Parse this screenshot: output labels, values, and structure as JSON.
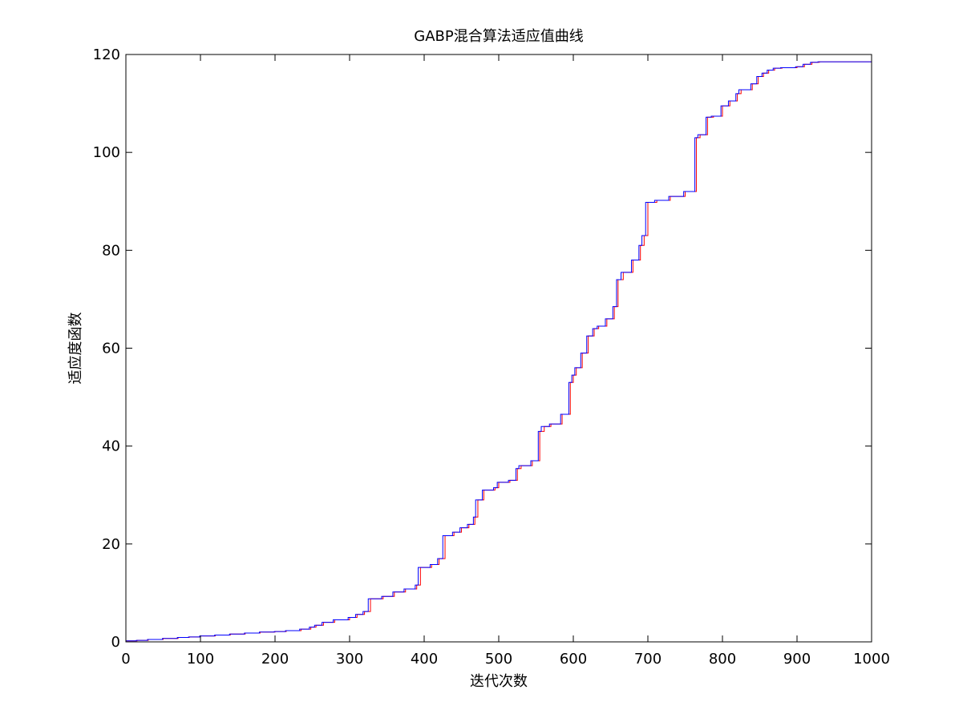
{
  "chart_data": {
    "type": "line",
    "title": "GABP混合算法适应值曲线",
    "xlabel": "迭代次数",
    "ylabel": "适应度函数",
    "xlim": [
      0,
      1000
    ],
    "ylim": [
      0,
      120
    ],
    "xticks": [
      0,
      100,
      200,
      300,
      400,
      500,
      600,
      700,
      800,
      900,
      1000
    ],
    "yticks": [
      0,
      20,
      40,
      60,
      80,
      100,
      120
    ],
    "grid": false,
    "legend": "none",
    "series": [
      {
        "color": "#ff0000",
        "step": true,
        "x": [
          0,
          15,
          30,
          50,
          70,
          85,
          100,
          120,
          140,
          160,
          180,
          200,
          215,
          235,
          248,
          255,
          265,
          280,
          300,
          310,
          320,
          328,
          345,
          360,
          375,
          390,
          395,
          410,
          420,
          428,
          440,
          450,
          460,
          468,
          472,
          480,
          495,
          500,
          515,
          525,
          530,
          545,
          555,
          561,
          570,
          585,
          596,
          600,
          604,
          612,
          620,
          628,
          634,
          645,
          655,
          660,
          667,
          680,
          690,
          695,
          700,
          712,
          730,
          750,
          765,
          770,
          780,
          788,
          800,
          810,
          820,
          825,
          840,
          848,
          855,
          862,
          870,
          880,
          900,
          910,
          920,
          930,
          1000
        ],
        "y": [
          0.2,
          0.3,
          0.5,
          0.7,
          0.9,
          1.0,
          1.2,
          1.4,
          1.6,
          1.8,
          2.0,
          2.1,
          2.3,
          2.6,
          3.0,
          3.4,
          4.0,
          4.5,
          5.0,
          5.6,
          6.2,
          8.8,
          9.3,
          10.2,
          10.8,
          11.6,
          15.2,
          15.8,
          17.0,
          21.7,
          22.4,
          23.3,
          24.0,
          25.5,
          29.0,
          31.0,
          31.5,
          32.6,
          33.0,
          35.4,
          36.0,
          37.0,
          43.0,
          44.0,
          44.5,
          46.5,
          53.0,
          54.5,
          56.0,
          59.0,
          62.5,
          64.0,
          64.5,
          66.0,
          68.5,
          74.0,
          75.5,
          78.0,
          81.0,
          83.0,
          89.8,
          90.2,
          91.0,
          92.0,
          103.0,
          103.6,
          107.2,
          107.4,
          109.5,
          110.5,
          112.0,
          112.8,
          114.0,
          115.5,
          116.2,
          116.8,
          117.2,
          117.3,
          117.5,
          118.0,
          118.4,
          118.5,
          118.5
        ]
      },
      {
        "color": "#0000ff",
        "step": true,
        "x": [
          0,
          14,
          29,
          49,
          69,
          84,
          99,
          119,
          139,
          159,
          179,
          199,
          214,
          233,
          246,
          253,
          263,
          278,
          298,
          308,
          318,
          325,
          343,
          358,
          373,
          388,
          392,
          408,
          418,
          425,
          438,
          448,
          458,
          466,
          469,
          478,
          493,
          498,
          513,
          523,
          527,
          543,
          553,
          557,
          568,
          583,
          594,
          598,
          602,
          610,
          618,
          626,
          632,
          643,
          653,
          658,
          664,
          678,
          688,
          692,
          697,
          709,
          728,
          748,
          763,
          767,
          778,
          785,
          798,
          808,
          818,
          822,
          838,
          846,
          853,
          860,
          868,
          878,
          898,
          908,
          918,
          928,
          1000
        ],
        "y": [
          0.2,
          0.3,
          0.5,
          0.7,
          0.9,
          1.0,
          1.2,
          1.4,
          1.6,
          1.8,
          2.0,
          2.1,
          2.3,
          2.6,
          3.0,
          3.4,
          4.0,
          4.5,
          5.0,
          5.6,
          6.2,
          8.8,
          9.3,
          10.2,
          10.8,
          11.6,
          15.2,
          15.8,
          17.0,
          21.7,
          22.4,
          23.3,
          24.0,
          25.5,
          29.0,
          31.0,
          31.5,
          32.6,
          33.0,
          35.4,
          36.0,
          37.0,
          43.0,
          44.0,
          44.5,
          46.5,
          53.0,
          54.5,
          56.0,
          59.0,
          62.5,
          64.0,
          64.5,
          66.0,
          68.5,
          74.0,
          75.5,
          78.0,
          81.0,
          83.0,
          89.8,
          90.2,
          91.0,
          92.0,
          103.0,
          103.6,
          107.2,
          107.4,
          109.5,
          110.5,
          112.0,
          112.8,
          114.0,
          115.5,
          116.2,
          116.8,
          117.2,
          117.3,
          117.5,
          118.0,
          118.4,
          118.5,
          118.5
        ]
      }
    ]
  }
}
